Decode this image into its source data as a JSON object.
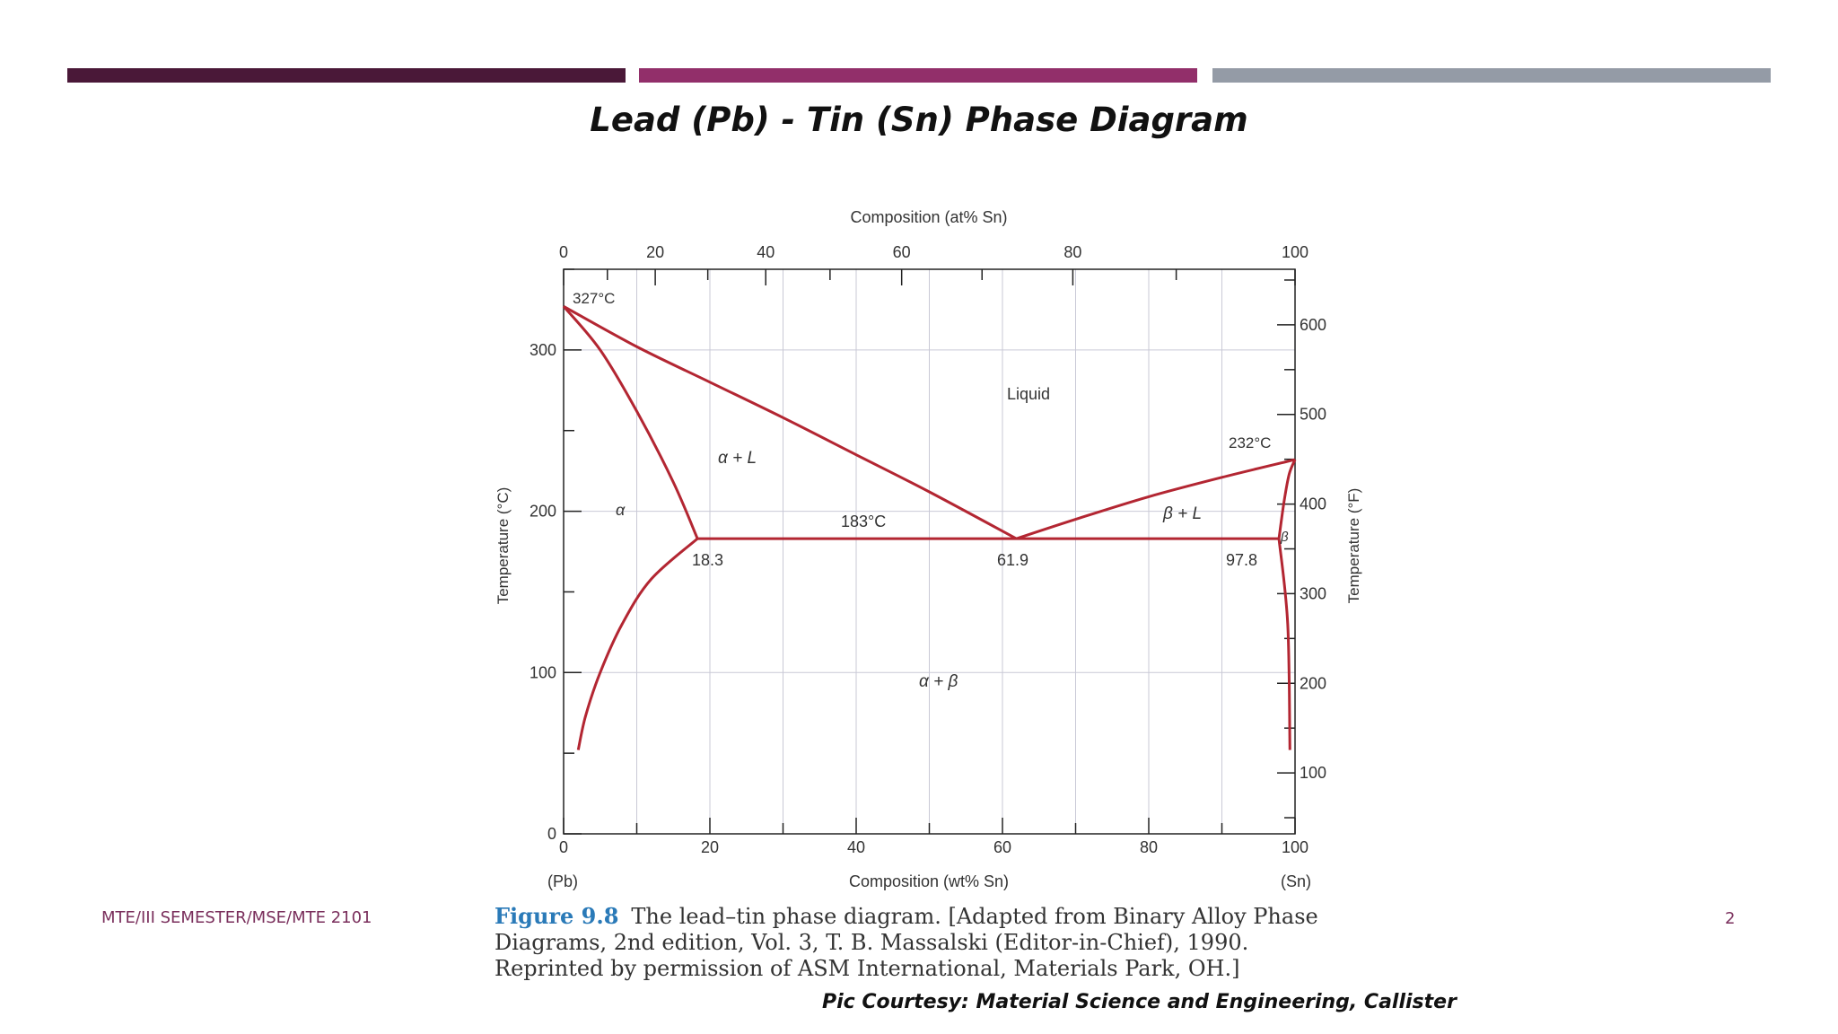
{
  "slide": {
    "title": "Lead (Pb) - Tin (Sn) Phase Diagram",
    "footer": "MTE/III SEMESTER/MSE/MTE 2101",
    "page_number": "2",
    "courtesy": "Pic Courtesy: Material Science and Engineering, Callister",
    "accent_colors": [
      "#4a1838",
      "#922f6a",
      "#949ba6"
    ]
  },
  "caption": {
    "label": "Figure 9.8",
    "text": "The lead–tin phase diagram. [Adapted from Binary Alloy Phase Diagrams, 2nd edition, Vol. 3, T. B. Massalski (Editor-in-Chief), 1990. Reprinted by permission of ASM International, Materials Park, OH.]"
  },
  "diagram": {
    "top_axis_title": "Composition (at% Sn)",
    "bottom_axis_title": "Composition (wt% Sn)",
    "left_axis_title": "Temperature (°C)",
    "right_axis_title": "Temperature (°F)",
    "left_end_label": "(Pb)",
    "right_end_label": "(Sn)",
    "x_ticks_wt": [
      "0",
      "20",
      "40",
      "60",
      "80",
      "100"
    ],
    "x_ticks_at": [
      "0",
      "20",
      "40",
      "60",
      "80",
      "100"
    ],
    "y_ticks_c": [
      "0",
      "100",
      "200",
      "300"
    ],
    "y_ticks_f": [
      "100",
      "200",
      "300",
      "400",
      "500",
      "600"
    ],
    "point_labels": {
      "pb_melt": "327°C",
      "sn_melt": "232°C",
      "eutectic": "183°C",
      "alpha_limit": "18.3",
      "eutectic_comp": "61.9",
      "beta_limit": "97.8"
    },
    "region_labels": {
      "liquid": "Liquid",
      "alpha_l": "α + L",
      "beta_l": "β + L",
      "alpha": "α",
      "beta": "β",
      "alpha_beta": "α + β"
    },
    "line_color": "#b32632"
  },
  "chart_data": {
    "type": "line",
    "title": "Lead (Pb) - Tin (Sn) Phase Diagram",
    "xlabel": "Composition (wt% Sn)",
    "ylabel": "Temperature (°C)",
    "xlim": [
      0,
      100
    ],
    "ylim": [
      0,
      350
    ],
    "grid": true,
    "series": [
      {
        "name": "liquidus (Pb side)",
        "x": [
          0,
          10,
          20,
          30,
          40,
          50,
          61.9
        ],
        "y": [
          327,
          302,
          280,
          258,
          235,
          212,
          183
        ]
      },
      {
        "name": "liquidus (Sn side)",
        "x": [
          61.9,
          70,
          80,
          90,
          100
        ],
        "y": [
          183,
          195,
          209,
          221,
          232
        ]
      },
      {
        "name": "solidus α",
        "x": [
          0,
          5,
          10,
          15,
          18.3
        ],
        "y": [
          327,
          300,
          262,
          218,
          183
        ]
      },
      {
        "name": "solvus α",
        "x": [
          18.3,
          12,
          8,
          5,
          3,
          2
        ],
        "y": [
          183,
          158,
          130,
          100,
          73,
          52
        ]
      },
      {
        "name": "eutectic isotherm",
        "x": [
          18.3,
          97.8
        ],
        "y": [
          183,
          183
        ]
      },
      {
        "name": "solidus β",
        "x": [
          97.8,
          98.5,
          99.2,
          100
        ],
        "y": [
          183,
          206,
          223,
          232
        ]
      },
      {
        "name": "solvus β",
        "x": [
          97.8,
          99,
          99.3
        ],
        "y": [
          183,
          130,
          52
        ]
      }
    ],
    "annotations": [
      {
        "text": "327°C",
        "x": 0,
        "y": 327
      },
      {
        "text": "232°C",
        "x": 100,
        "y": 232
      },
      {
        "text": "183°C",
        "x": 40,
        "y": 183
      },
      {
        "text": "18.3",
        "x": 18.3,
        "y": 183
      },
      {
        "text": "61.9",
        "x": 61.9,
        "y": 183
      },
      {
        "text": "97.8",
        "x": 97.8,
        "y": 183
      },
      {
        "text": "Liquid",
        "x": 64,
        "y": 270
      },
      {
        "text": "α + L",
        "x": 24,
        "y": 230
      },
      {
        "text": "β + L",
        "x": 85,
        "y": 198
      },
      {
        "text": "α + β",
        "x": 52,
        "y": 95
      },
      {
        "text": "α",
        "x": 8,
        "y": 200
      },
      {
        "text": "β",
        "x": 99,
        "y": 185
      }
    ]
  }
}
